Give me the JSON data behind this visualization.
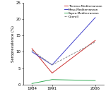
{
  "x": [
    1984,
    1991,
    2006
  ],
  "thermo": [
    11.0,
    3.5,
    13.5
  ],
  "meso": [
    10.0,
    6.0,
    20.5
  ],
  "supra": [
    0.3,
    1.5,
    1.2
  ],
  "overall": [
    10.5,
    6.0,
    13.0
  ],
  "colors": {
    "thermo": "#cc3333",
    "meso": "#4444cc",
    "supra": "#33aa55",
    "overall": "#888888"
  },
  "linestyles": {
    "thermo": "-",
    "meso": "-",
    "supra": "-",
    "overall": "--"
  },
  "labels": {
    "thermo": "Thermo-Mediterranean",
    "meso": "Meso-Mediterranean",
    "supra": "Supra-Mediterranean",
    "overall": "Overall"
  },
  "ylabel": "Seroprevalence (%)",
  "ylim": [
    0,
    25
  ],
  "yticks": [
    0,
    5,
    10,
    15,
    20,
    25
  ],
  "xticks": [
    1984,
    1991,
    2006
  ],
  "xlim": [
    1981,
    2009
  ],
  "figsize": [
    1.5,
    1.36
  ],
  "dpi": 100
}
